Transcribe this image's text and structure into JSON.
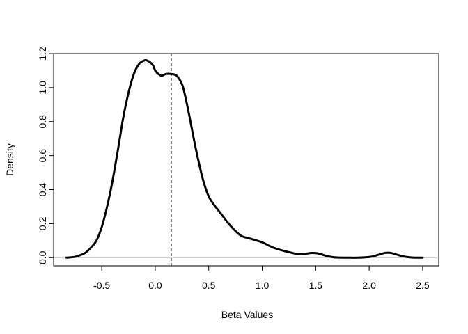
{
  "chart_data": {
    "type": "line",
    "title": "",
    "xlabel": "Beta Values",
    "ylabel": "Density",
    "xlim": [
      -0.95,
      2.65
    ],
    "ylim": [
      -0.048,
      1.2
    ],
    "x_ticks": [
      -0.5,
      0.0,
      0.5,
      1.0,
      1.5,
      2.0,
      2.5
    ],
    "x_tick_labels": [
      "-0.5",
      "0.0",
      "0.5",
      "1.0",
      "1.5",
      "2.0",
      "2.5"
    ],
    "y_ticks": [
      0.0,
      0.2,
      0.4,
      0.6,
      0.8,
      1.0,
      1.2
    ],
    "y_tick_labels": [
      "0.0",
      "0.2",
      "0.4",
      "0.6",
      "0.8",
      "1.0",
      "1.2"
    ],
    "grid": false,
    "legend": "none",
    "colors": {
      "density_line": "#000000",
      "reference_line": "#000000",
      "zero_line": "#bebebe"
    },
    "series": [
      {
        "x": [
          -0.83,
          -0.75,
          -0.7,
          -0.65,
          -0.6,
          -0.55,
          -0.5,
          -0.45,
          -0.4,
          -0.35,
          -0.3,
          -0.25,
          -0.2,
          -0.15,
          -0.1,
          -0.08,
          -0.05,
          -0.02,
          0.0,
          0.03,
          0.06,
          0.1,
          0.15,
          0.2,
          0.25,
          0.28,
          0.32,
          0.36,
          0.4,
          0.45,
          0.5,
          0.55,
          0.6,
          0.7,
          0.8,
          0.9,
          1.0,
          1.1,
          1.2,
          1.3,
          1.35,
          1.4,
          1.45,
          1.5,
          1.55,
          1.6,
          1.65,
          1.7,
          1.8,
          1.9,
          2.0,
          2.05,
          2.1,
          2.15,
          2.2,
          2.25,
          2.3,
          2.35,
          2.4,
          2.45,
          2.5
        ],
        "y": [
          0.0,
          0.005,
          0.015,
          0.03,
          0.06,
          0.1,
          0.18,
          0.3,
          0.45,
          0.63,
          0.82,
          0.97,
          1.08,
          1.14,
          1.16,
          1.16,
          1.15,
          1.13,
          1.1,
          1.08,
          1.07,
          1.08,
          1.08,
          1.07,
          1.02,
          0.95,
          0.83,
          0.7,
          0.58,
          0.45,
          0.36,
          0.31,
          0.27,
          0.19,
          0.13,
          0.11,
          0.09,
          0.06,
          0.04,
          0.025,
          0.02,
          0.022,
          0.027,
          0.027,
          0.02,
          0.01,
          0.004,
          0.001,
          0.0,
          0.0,
          0.004,
          0.01,
          0.02,
          0.028,
          0.028,
          0.02,
          0.01,
          0.004,
          0.001,
          0.0,
          0.0
        ]
      }
    ],
    "reference_line_x": 0.15,
    "zero_line_y": 0.0
  }
}
